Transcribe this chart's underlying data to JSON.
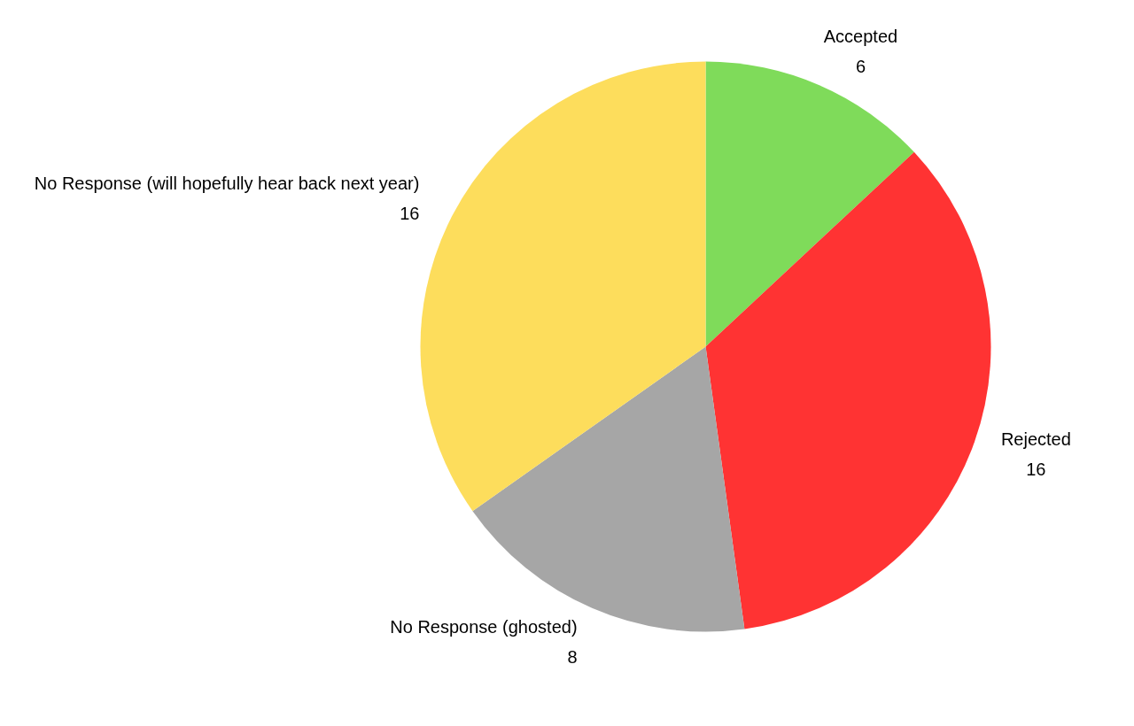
{
  "chart_data": {
    "type": "pie",
    "categories": [
      "Accepted",
      "Rejected",
      "No Response (ghosted)",
      "No Response (will hopefully hear back next year)"
    ],
    "values": [
      6,
      16,
      8,
      16
    ],
    "colors": [
      "#7fdb5a",
      "#ff3333",
      "#a6a6a6",
      "#fddd5c"
    ],
    "data_labels": true
  }
}
